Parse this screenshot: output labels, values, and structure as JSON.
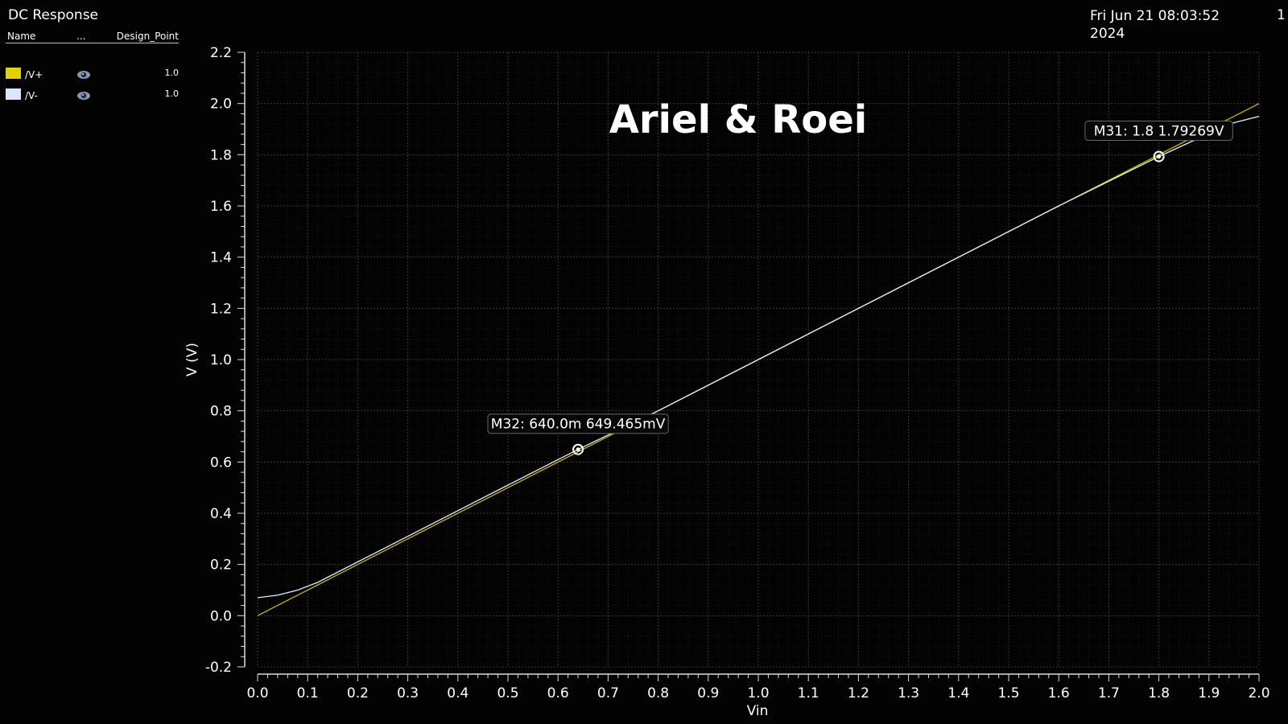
{
  "window": {
    "title": "DC Response",
    "datetime_line1": "Fri Jun 21 08:03:52",
    "datetime_line2": "2024",
    "page_number": "1"
  },
  "legend": {
    "headers": {
      "name": "Name",
      "dots": "...",
      "design_point": "Design_Point"
    },
    "items": [
      {
        "name": "/V+",
        "color": "#e0d200",
        "icon": "eye-icon",
        "value": "1.0"
      },
      {
        "name": "/V-",
        "color": "#dde6ff",
        "icon": "eye-icon",
        "value": "1.0"
      }
    ]
  },
  "chart_data": {
    "type": "line",
    "title": "Ariel & Roei",
    "xlabel": "Vin",
    "ylabel": "V (V)",
    "xlim": [
      0.0,
      2.0
    ],
    "ylim": [
      -0.2,
      2.2
    ],
    "xticks": [
      "0.0",
      "0.1",
      "0.2",
      "0.3",
      "0.4",
      "0.5",
      "0.6",
      "0.7",
      "0.8",
      "0.9",
      "1.0",
      "1.1",
      "1.2",
      "1.3",
      "1.4",
      "1.5",
      "1.6",
      "1.7",
      "1.8",
      "1.9",
      "2.0"
    ],
    "yticks": [
      "-0.2",
      "0.0",
      "0.2",
      "0.4",
      "0.6",
      "0.8",
      "1.0",
      "1.2",
      "1.4",
      "1.6",
      "1.8",
      "2.0",
      "2.2"
    ],
    "grid": true,
    "series": [
      {
        "name": "/V+",
        "color": "#c9b800",
        "x": [
          0.0,
          2.0
        ],
        "y": [
          0.0,
          2.0
        ]
      },
      {
        "name": "/V-",
        "color": "#e6ecff",
        "x": [
          0.0,
          0.04,
          0.08,
          0.12,
          0.2,
          0.3,
          0.4,
          0.5,
          0.64,
          0.8,
          1.0,
          1.2,
          1.4,
          1.6,
          1.8,
          1.88,
          1.94,
          2.0
        ],
        "y": [
          0.07,
          0.08,
          0.1,
          0.13,
          0.21,
          0.31,
          0.41,
          0.51,
          0.649,
          0.8,
          1.0,
          1.2,
          1.4,
          1.6,
          1.793,
          1.865,
          1.92,
          1.95
        ]
      }
    ],
    "markers": [
      {
        "label": "M32: 640.0m 649.465mV",
        "x": 0.64,
        "y": 0.649
      },
      {
        "label": "M31: 1.8 1.79269V",
        "x": 1.8,
        "y": 1.793
      }
    ]
  }
}
